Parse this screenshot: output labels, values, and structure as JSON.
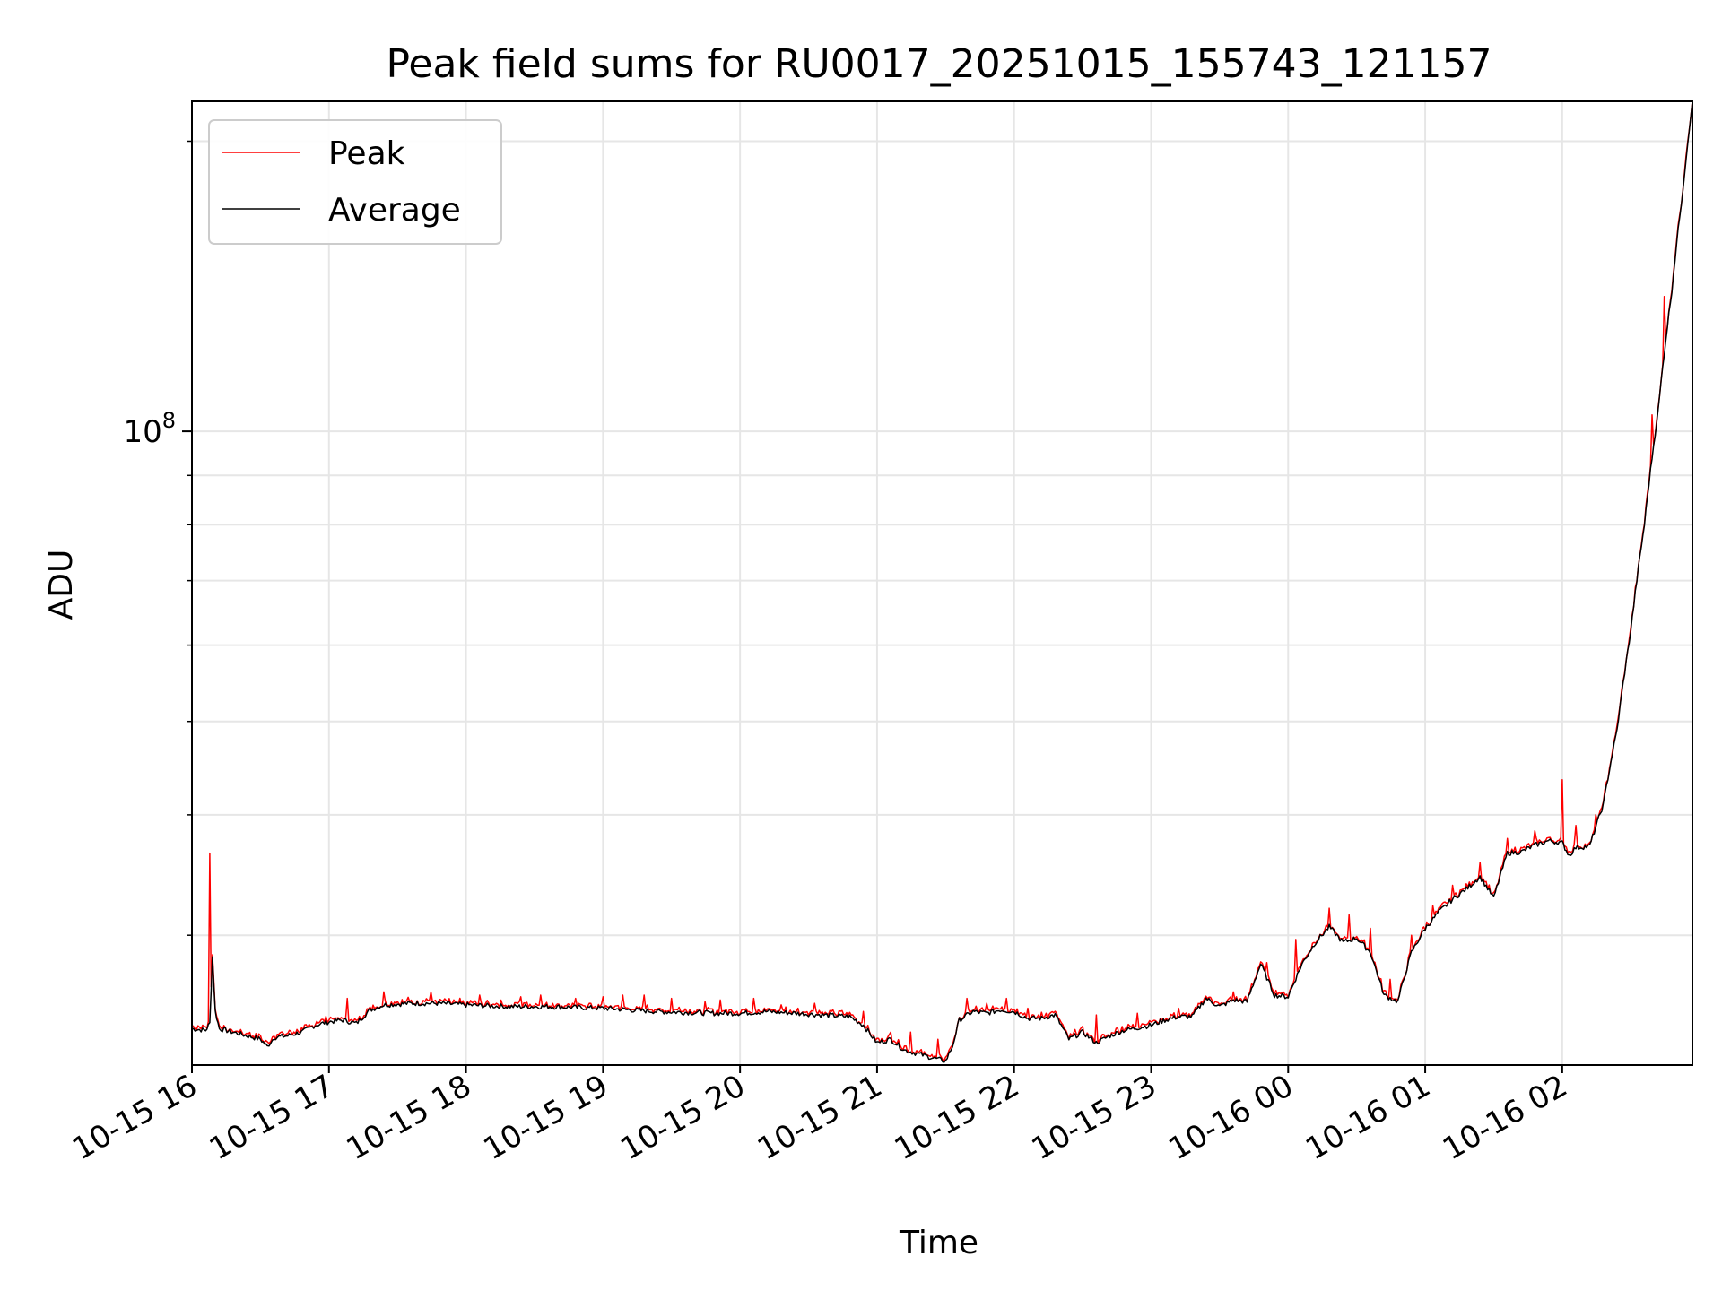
{
  "chart_data": {
    "type": "line",
    "title": "Peak field sums for RU0017_20251015_155743_121157",
    "xlabel": "Time",
    "ylabel": "ADU",
    "yscale": "log",
    "ylim": [
      22000000,
      220000000
    ],
    "xlim": [
      0,
      10.95
    ],
    "grid": true,
    "legend_position": "top-left",
    "x_units": "hours since 2025-10-15 16:00",
    "x_ticks": [
      {
        "value": 0,
        "label": "10-15 16"
      },
      {
        "value": 1,
        "label": "10-15 17"
      },
      {
        "value": 2,
        "label": "10-15 18"
      },
      {
        "value": 3,
        "label": "10-15 19"
      },
      {
        "value": 4,
        "label": "10-15 20"
      },
      {
        "value": 5,
        "label": "10-15 21"
      },
      {
        "value": 6,
        "label": "10-15 22"
      },
      {
        "value": 7,
        "label": "10-15 23"
      },
      {
        "value": 8,
        "label": "10-16 00"
      },
      {
        "value": 9,
        "label": "10-16 01"
      },
      {
        "value": 10,
        "label": "10-16 02"
      }
    ],
    "y_major_ticks": [
      {
        "value": 100000000,
        "base": "10",
        "exp": "8"
      }
    ],
    "y_minor_ticks": [
      30000000,
      40000000,
      50000000,
      60000000,
      70000000,
      80000000,
      90000000,
      200000000
    ],
    "series": [
      {
        "name": "Peak",
        "color": "#ff0000"
      },
      {
        "name": "Average",
        "color": "#000000"
      }
    ],
    "average_points": [
      [
        0.0,
        24.0
      ],
      [
        0.1,
        23.9
      ],
      [
        0.13,
        24.3
      ],
      [
        0.15,
        28.5
      ],
      [
        0.17,
        25.0
      ],
      [
        0.2,
        24.0
      ],
      [
        0.3,
        23.8
      ],
      [
        0.4,
        23.6
      ],
      [
        0.5,
        23.4
      ],
      [
        0.55,
        23.0
      ],
      [
        0.6,
        23.5
      ],
      [
        0.7,
        23.6
      ],
      [
        0.8,
        23.8
      ],
      [
        0.9,
        24.2
      ],
      [
        1.0,
        24.4
      ],
      [
        1.1,
        24.5
      ],
      [
        1.2,
        24.3
      ],
      [
        1.3,
        25.1
      ],
      [
        1.4,
        25.4
      ],
      [
        1.6,
        25.5
      ],
      [
        1.8,
        25.5
      ],
      [
        2.0,
        25.4
      ],
      [
        2.3,
        25.3
      ],
      [
        2.6,
        25.3
      ],
      [
        3.0,
        25.2
      ],
      [
        3.4,
        25.0
      ],
      [
        3.8,
        24.9
      ],
      [
        4.0,
        24.9
      ],
      [
        4.2,
        25.0
      ],
      [
        4.4,
        24.9
      ],
      [
        4.6,
        24.8
      ],
      [
        4.8,
        24.7
      ],
      [
        4.9,
        24.2
      ],
      [
        5.0,
        23.2
      ],
      [
        5.1,
        23.4
      ],
      [
        5.2,
        22.8
      ],
      [
        5.3,
        22.6
      ],
      [
        5.4,
        22.4
      ],
      [
        5.5,
        22.2
      ],
      [
        5.55,
        23.0
      ],
      [
        5.6,
        24.5
      ],
      [
        5.7,
        25.0
      ],
      [
        5.8,
        24.9
      ],
      [
        5.9,
        25.1
      ],
      [
        6.0,
        25.0
      ],
      [
        6.1,
        24.6
      ],
      [
        6.2,
        24.6
      ],
      [
        6.3,
        24.8
      ],
      [
        6.4,
        23.4
      ],
      [
        6.5,
        23.8
      ],
      [
        6.6,
        23.2
      ],
      [
        6.7,
        23.6
      ],
      [
        6.8,
        23.9
      ],
      [
        7.0,
        24.2
      ],
      [
        7.1,
        24.5
      ],
      [
        7.2,
        24.7
      ],
      [
        7.3,
        24.7
      ],
      [
        7.4,
        25.8
      ],
      [
        7.5,
        25.3
      ],
      [
        7.6,
        25.7
      ],
      [
        7.7,
        25.6
      ],
      [
        7.8,
        28.0
      ],
      [
        7.9,
        26.0
      ],
      [
        8.0,
        25.9
      ],
      [
        8.1,
        28.0
      ],
      [
        8.2,
        29.5
      ],
      [
        8.3,
        30.6
      ],
      [
        8.4,
        29.5
      ],
      [
        8.5,
        29.8
      ],
      [
        8.6,
        28.8
      ],
      [
        8.7,
        26.0
      ],
      [
        8.8,
        25.6
      ],
      [
        8.9,
        28.8
      ],
      [
        9.0,
        30.5
      ],
      [
        9.1,
        31.7
      ],
      [
        9.2,
        32.7
      ],
      [
        9.3,
        33.5
      ],
      [
        9.4,
        34.5
      ],
      [
        9.5,
        32.8
      ],
      [
        9.6,
        36.5
      ],
      [
        9.7,
        36.6
      ],
      [
        9.8,
        37.2
      ],
      [
        9.9,
        37.6
      ],
      [
        10.0,
        37.4
      ],
      [
        10.05,
        36.3
      ],
      [
        10.1,
        37.0
      ],
      [
        10.2,
        37.1
      ],
      [
        10.3,
        41.0
      ],
      [
        10.4,
        49.0
      ],
      [
        10.5,
        62.0
      ],
      [
        10.6,
        80.0
      ],
      [
        10.7,
        105.0
      ],
      [
        10.8,
        140.0
      ],
      [
        10.88,
        178.0
      ],
      [
        10.95,
        220.0
      ]
    ],
    "peak_spikes": [
      [
        0.13,
        36.5
      ],
      [
        1.13,
        25.8
      ],
      [
        1.4,
        26.2
      ],
      [
        1.75,
        26.2
      ],
      [
        2.1,
        26.0
      ],
      [
        2.4,
        25.9
      ],
      [
        2.55,
        26.0
      ],
      [
        2.8,
        25.8
      ],
      [
        3.0,
        25.9
      ],
      [
        3.15,
        26.0
      ],
      [
        3.3,
        26.0
      ],
      [
        3.5,
        25.8
      ],
      [
        3.75,
        25.6
      ],
      [
        3.85,
        25.7
      ],
      [
        4.1,
        25.8
      ],
      [
        4.3,
        25.4
      ],
      [
        4.55,
        25.5
      ],
      [
        4.9,
        25.0
      ],
      [
        5.1,
        23.8
      ],
      [
        5.25,
        23.8
      ],
      [
        5.45,
        23.4
      ],
      [
        5.65,
        25.8
      ],
      [
        5.8,
        25.5
      ],
      [
        5.95,
        25.8
      ],
      [
        6.1,
        25.2
      ],
      [
        6.6,
        24.8
      ],
      [
        6.9,
        24.9
      ],
      [
        7.2,
        25.2
      ],
      [
        7.6,
        26.2
      ],
      [
        7.85,
        28.1
      ],
      [
        8.05,
        29.7
      ],
      [
        8.3,
        32.0
      ],
      [
        8.45,
        31.5
      ],
      [
        8.6,
        30.5
      ],
      [
        8.75,
        27.0
      ],
      [
        8.9,
        30.0
      ],
      [
        9.05,
        32.2
      ],
      [
        9.2,
        33.8
      ],
      [
        9.4,
        35.7
      ],
      [
        9.6,
        37.8
      ],
      [
        9.8,
        38.5
      ],
      [
        10.0,
        43.5
      ],
      [
        10.1,
        39.0
      ],
      [
        10.25,
        40.0
      ],
      [
        10.65,
        104.0
      ],
      [
        10.75,
        138.0
      ]
    ]
  }
}
